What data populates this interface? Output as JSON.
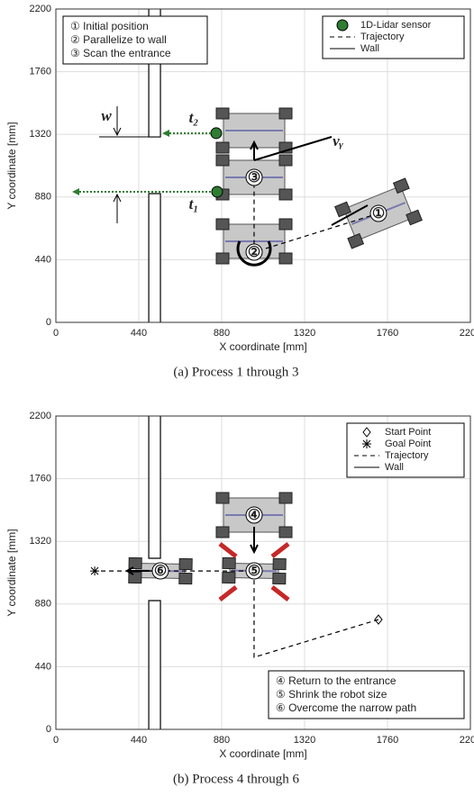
{
  "chart_data": [
    {
      "type": "line",
      "caption": "(a) Process 1 through 3",
      "xlabel": "X coordinate [mm]",
      "ylabel": "Y coordinate [mm]",
      "xlim": [
        0,
        2200
      ],
      "ylim": [
        0,
        2200
      ],
      "xticks": [
        0,
        440,
        880,
        1320,
        1760,
        2200
      ],
      "yticks": [
        0,
        440,
        880,
        1320,
        1760,
        2200
      ],
      "grid": true,
      "legend": "upper right",
      "series": [
        {
          "name": "1D-Lidar sensor",
          "color": "#2e7d32",
          "marker": "circle",
          "line": "none",
          "x": [
            851,
            856
          ],
          "values": [
            1328,
            917
          ]
        },
        {
          "name": "Trajectory",
          "color": "#000000",
          "marker": "none",
          "line": "dashed",
          "x": [
            1712,
            1052,
            1052
          ],
          "values": [
            765,
            493,
            1018
          ]
        },
        {
          "name": "Wall",
          "color": "#000000",
          "marker": "none",
          "line": "solid",
          "x": [
            493,
            493,
            555,
            555,
            null,
            493,
            493,
            555,
            555
          ],
          "values": [
            2200,
            1302,
            1302,
            2200,
            null,
            0,
            904,
            904,
            0
          ]
        }
      ],
      "steps": [
        "① Initial position",
        "② Parallelize to wall",
        "③ Scan the entrance"
      ],
      "annotations": [
        "w",
        "t₂",
        "t₁",
        "vᵧ"
      ],
      "markers": [
        "①",
        "②",
        "③"
      ]
    },
    {
      "type": "line",
      "caption": "(b) Process 4 through 6",
      "xlabel": "X coordinate [mm]",
      "ylabel": "Y coordinate [mm]",
      "xlim": [
        0,
        2200
      ],
      "ylim": [
        0,
        2200
      ],
      "xticks": [
        0,
        440,
        880,
        1320,
        1760,
        2200
      ],
      "yticks": [
        0,
        440,
        880,
        1320,
        1760,
        2200
      ],
      "grid": true,
      "legend": "upper right",
      "series": [
        {
          "name": "Start Point",
          "color": "#000000",
          "marker": "diamond",
          "line": "none",
          "x": [
            1712
          ],
          "values": [
            771
          ]
        },
        {
          "name": "Goal Point",
          "color": "#000000",
          "marker": "star",
          "line": "none",
          "x": [
            206
          ],
          "values": [
            1112
          ]
        },
        {
          "name": "Trajectory",
          "color": "#000000",
          "marker": "none",
          "line": "dashed",
          "x": [
            1712,
            1052,
            1052,
            206
          ],
          "values": [
            771,
            506,
            1112,
            1112
          ]
        },
        {
          "name": "Wall",
          "color": "#000000",
          "marker": "none",
          "line": "solid",
          "x": [
            493,
            493,
            555,
            555,
            null,
            493,
            493,
            555,
            555
          ],
          "values": [
            2200,
            1201,
            1201,
            2200,
            null,
            0,
            904,
            904,
            0
          ]
        }
      ],
      "steps": [
        "④ Return to the entrance",
        "⑤ Shrink the robot size",
        "⑥ Overcome the narrow path"
      ],
      "annotations": [],
      "markers": [
        "④",
        "⑤",
        "⑥"
      ]
    }
  ]
}
